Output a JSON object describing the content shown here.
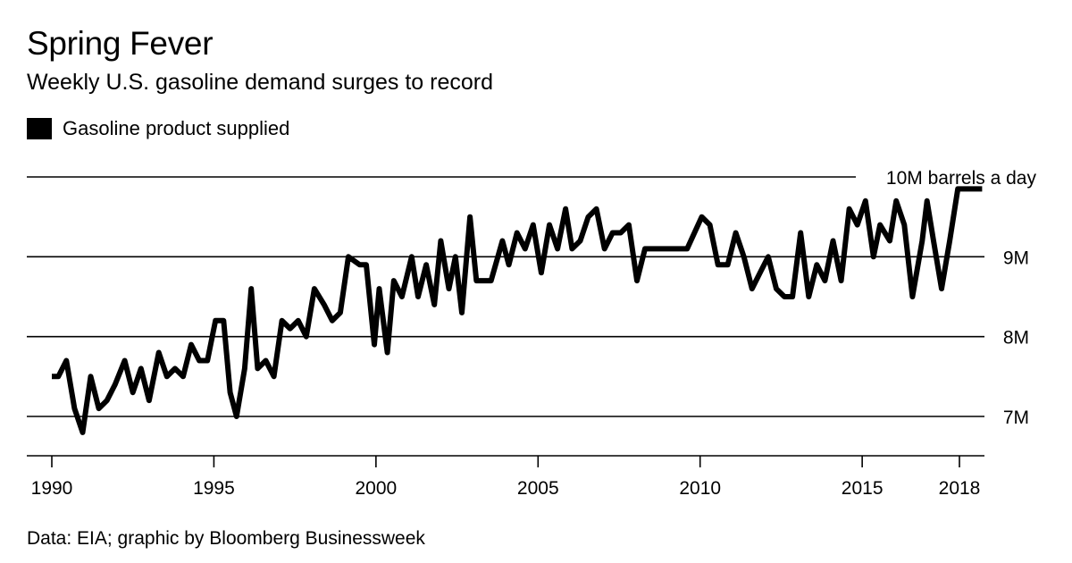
{
  "colors": {
    "line": "#000000",
    "grid": "#000000",
    "background": "#ffffff"
  },
  "chart_data": {
    "type": "line",
    "title": "Spring Fever",
    "subtitle": "Weekly U.S. gasoline demand surges to record",
    "legend": [
      "Gasoline product supplied"
    ],
    "legend_placement": "top-left",
    "xlabel": "",
    "ylabel": "",
    "xlim": [
      1989.5,
      2018.7
    ],
    "ylim": [
      6.5,
      10.1
    ],
    "x_ticks": [
      {
        "value": 1990,
        "label": "1990"
      },
      {
        "value": 1995,
        "label": "1995"
      },
      {
        "value": 2000,
        "label": "2000"
      },
      {
        "value": 2005,
        "label": "2005"
      },
      {
        "value": 2010,
        "label": "2010"
      },
      {
        "value": 2015,
        "label": "2015"
      },
      {
        "value": 2018,
        "label": "2018"
      }
    ],
    "y_ticks": [
      {
        "value": 7,
        "label": "7M"
      },
      {
        "value": 8,
        "label": "8M"
      },
      {
        "value": 9,
        "label": "9M"
      },
      {
        "value": 10,
        "label": "10M barrels a day"
      }
    ],
    "grid": true,
    "series": [
      {
        "name": "Gasoline product supplied",
        "x": [
          1990.0,
          1990.2,
          1990.45,
          1990.7,
          1990.95,
          1991.2,
          1991.45,
          1991.7,
          1991.95,
          1992.25,
          1992.5,
          1992.75,
          1993.0,
          1993.3,
          1993.55,
          1993.8,
          1994.05,
          1994.3,
          1994.55,
          1994.8,
          1995.05,
          1995.3,
          1995.5,
          1995.7,
          1995.95,
          1996.15,
          1996.35,
          1996.6,
          1996.85,
          1997.1,
          1997.35,
          1997.6,
          1997.85,
          1998.1,
          1998.4,
          1998.65,
          1998.9,
          1999.15,
          1999.5,
          1999.7,
          1999.95,
          2000.1,
          2000.35,
          2000.55,
          2000.8,
          2001.1,
          2001.3,
          2001.55,
          2001.8,
          2002.0,
          2002.25,
          2002.45,
          2002.65,
          2002.9,
          2003.1,
          2003.35,
          2003.55,
          2003.9,
          2004.1,
          2004.35,
          2004.6,
          2004.85,
          2005.1,
          2005.35,
          2005.6,
          2005.85,
          2006.05,
          2006.3,
          2006.55,
          2006.8,
          2007.05,
          2007.3,
          2007.55,
          2007.8,
          2008.05,
          2008.3,
          2008.55,
          2008.8,
          2009.05,
          2009.6,
          2010.05,
          2010.3,
          2010.55,
          2010.85,
          2011.1,
          2011.35,
          2011.6,
          2011.85,
          2012.1,
          2012.35,
          2012.6,
          2012.85,
          2013.1,
          2013.35,
          2013.6,
          2013.85,
          2014.1,
          2014.35,
          2014.6,
          2014.85,
          2015.1,
          2015.35,
          2015.55,
          2015.85,
          2016.05,
          2016.3,
          2016.55,
          2016.85,
          2017.0,
          2017.2,
          2017.45,
          2017.7,
          2017.95,
          2018.25,
          2018.5,
          2018.7
        ],
        "values": [
          7.5,
          7.5,
          7.7,
          7.1,
          6.8,
          7.5,
          7.1,
          7.2,
          7.4,
          7.7,
          7.3,
          7.6,
          7.2,
          7.8,
          7.5,
          7.6,
          7.5,
          7.9,
          7.7,
          7.7,
          8.2,
          8.2,
          7.3,
          7.0,
          7.6,
          8.6,
          7.6,
          7.7,
          7.5,
          8.2,
          8.1,
          8.2,
          8.0,
          8.6,
          8.4,
          8.2,
          8.3,
          9.0,
          8.9,
          8.9,
          7.9,
          8.6,
          7.8,
          8.7,
          8.5,
          9.0,
          8.5,
          8.9,
          8.4,
          9.2,
          8.6,
          9.0,
          8.3,
          9.5,
          8.7,
          8.7,
          8.7,
          9.2,
          8.9,
          9.3,
          9.1,
          9.4,
          8.8,
          9.4,
          9.1,
          9.6,
          9.1,
          9.2,
          9.5,
          9.6,
          9.1,
          9.3,
          9.3,
          9.4,
          8.7,
          9.1,
          9.1,
          9.1,
          9.1,
          9.1,
          9.5,
          9.4,
          8.9,
          8.9,
          9.3,
          9.0,
          8.6,
          8.8,
          9.0,
          8.6,
          8.5,
          8.5,
          9.3,
          8.5,
          8.9,
          8.7,
          9.2,
          8.7,
          9.6,
          9.4,
          9.7,
          9.0,
          9.4,
          9.2,
          9.7,
          9.4,
          8.5,
          9.2,
          9.7,
          9.2,
          8.6,
          9.2,
          9.85,
          9.85,
          9.85,
          9.85
        ]
      }
    ]
  },
  "source": "Data: EIA; graphic by Bloomberg Businessweek"
}
